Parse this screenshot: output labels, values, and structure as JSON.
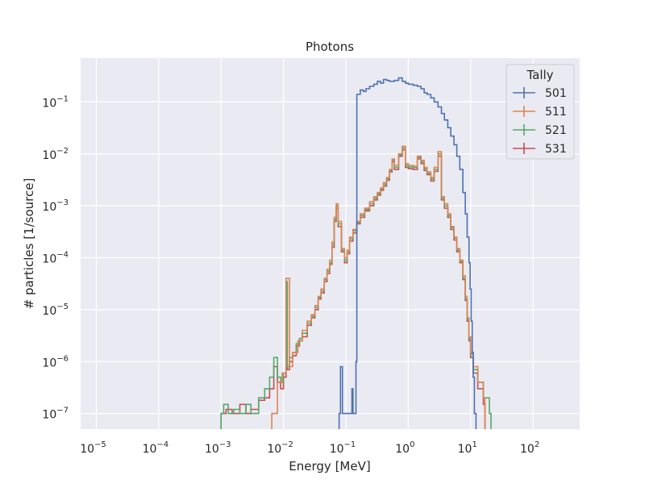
{
  "chart_data": {
    "type": "line",
    "title": "Photons",
    "xlabel": "Energy [MeV]",
    "ylabel": "# particles [1/source]",
    "xscale": "log",
    "yscale": "log",
    "xlim": [
      5.6e-06,
      560.0
    ],
    "ylim": [
      5e-08,
      0.7
    ],
    "grid": true,
    "legend": {
      "title": "Tally",
      "placement": "top-right"
    },
    "x_ticks": [
      {
        "value": 1e-05,
        "base": "10",
        "exp": "−5"
      },
      {
        "value": 0.0001,
        "base": "10",
        "exp": "−4"
      },
      {
        "value": 0.001,
        "base": "10",
        "exp": "−3"
      },
      {
        "value": 0.01,
        "base": "10",
        "exp": "−2"
      },
      {
        "value": 0.1,
        "base": "10",
        "exp": "−1"
      },
      {
        "value": 1,
        "base": "10",
        "exp": "0"
      },
      {
        "value": 10,
        "base": "10",
        "exp": "1"
      },
      {
        "value": 100,
        "base": "10",
        "exp": "2"
      }
    ],
    "y_ticks": [
      {
        "value": 1e-07,
        "base": "10",
        "exp": "−7"
      },
      {
        "value": 1e-06,
        "base": "10",
        "exp": "−6"
      },
      {
        "value": 1e-05,
        "base": "10",
        "exp": "−5"
      },
      {
        "value": 0.0001,
        "base": "10",
        "exp": "−4"
      },
      {
        "value": 0.001,
        "base": "10",
        "exp": "−3"
      },
      {
        "value": 0.01,
        "base": "10",
        "exp": "−2"
      },
      {
        "value": 0.1,
        "base": "10",
        "exp": "−1"
      }
    ],
    "series": [
      {
        "name": "501",
        "color": "#4c72b0",
        "points": [
          [
            0.078,
            1e-07
          ],
          [
            0.082,
            8e-07
          ],
          [
            0.088,
            1e-07
          ],
          [
            0.12,
            1e-07
          ],
          [
            0.125,
            3e-07
          ],
          [
            0.13,
            1e-07
          ],
          [
            0.145,
            1e-06
          ],
          [
            0.15,
            0.14
          ],
          [
            0.17,
            0.17
          ],
          [
            0.19,
            0.16
          ],
          [
            0.21,
            0.18
          ],
          [
            0.24,
            0.2
          ],
          [
            0.28,
            0.22
          ],
          [
            0.32,
            0.25
          ],
          [
            0.36,
            0.23
          ],
          [
            0.4,
            0.27
          ],
          [
            0.45,
            0.26
          ],
          [
            0.5,
            0.25
          ],
          [
            0.6,
            0.26
          ],
          [
            0.7,
            0.29
          ],
          [
            0.8,
            0.25
          ],
          [
            0.9,
            0.23
          ],
          [
            1.0,
            0.22
          ],
          [
            1.2,
            0.21
          ],
          [
            1.4,
            0.2
          ],
          [
            1.6,
            0.18
          ],
          [
            1.8,
            0.15
          ],
          [
            2.0,
            0.14
          ],
          [
            2.3,
            0.12
          ],
          [
            2.6,
            0.1
          ],
          [
            3.0,
            0.08
          ],
          [
            3.4,
            0.06
          ],
          [
            3.8,
            0.045
          ],
          [
            4.3,
            0.032
          ],
          [
            4.8,
            0.022
          ],
          [
            5.4,
            0.015
          ],
          [
            6.0,
            0.009
          ],
          [
            6.7,
            0.005
          ],
          [
            7.5,
            0.0018
          ],
          [
            8.2,
            0.0007
          ],
          [
            8.8,
            0.00025
          ],
          [
            9.4,
            8e-05
          ],
          [
            9.8,
            2.5e-05
          ],
          [
            10.2,
            6e-06
          ],
          [
            10.6,
            1.5e-06
          ],
          [
            11.0,
            5e-07
          ],
          [
            11.5,
            1e-07
          ]
        ]
      },
      {
        "name": "511",
        "color": "#dd8452",
        "points": [
          [
            0.0065,
            1e-07
          ],
          [
            0.008,
            4e-07
          ],
          [
            0.0095,
            6e-07
          ],
          [
            0.011,
            4e-05
          ],
          [
            0.0125,
            8e-07
          ],
          [
            0.014,
            1.5e-06
          ],
          [
            0.017,
            2.5e-06
          ],
          [
            0.02,
            4e-06
          ],
          [
            0.024,
            6e-06
          ],
          [
            0.028,
            8e-06
          ],
          [
            0.032,
            1.2e-05
          ],
          [
            0.036,
            1.8e-05
          ],
          [
            0.04,
            2.5e-05
          ],
          [
            0.045,
            4e-05
          ],
          [
            0.05,
            6e-05
          ],
          [
            0.055,
            9e-05
          ],
          [
            0.06,
            0.0002
          ],
          [
            0.065,
            0.0006
          ],
          [
            0.07,
            0.0011
          ],
          [
            0.075,
            0.0005
          ],
          [
            0.085,
            0.00015
          ],
          [
            0.095,
            0.0001
          ],
          [
            0.105,
            0.00014
          ],
          [
            0.115,
            0.00025
          ],
          [
            0.13,
            0.00035
          ],
          [
            0.15,
            0.0005
          ],
          [
            0.17,
            0.0007
          ],
          [
            0.2,
            0.0009
          ],
          [
            0.24,
            0.0012
          ],
          [
            0.28,
            0.0015
          ],
          [
            0.32,
            0.0018
          ],
          [
            0.36,
            0.0022
          ],
          [
            0.4,
            0.0028
          ],
          [
            0.45,
            0.0035
          ],
          [
            0.5,
            0.005
          ],
          [
            0.55,
            0.008
          ],
          [
            0.6,
            0.006
          ],
          [
            0.7,
            0.01
          ],
          [
            0.8,
            0.014
          ],
          [
            0.9,
            0.0065
          ],
          [
            1.0,
            0.006
          ],
          [
            1.2,
            0.0058
          ],
          [
            1.4,
            0.009
          ],
          [
            1.6,
            0.0075
          ],
          [
            1.8,
            0.0055
          ],
          [
            2.0,
            0.0045
          ],
          [
            2.3,
            0.0035
          ],
          [
            2.6,
            0.0055
          ],
          [
            3.0,
            0.011
          ],
          [
            3.4,
            0.0015
          ],
          [
            3.8,
            0.0011
          ],
          [
            4.3,
            0.0007
          ],
          [
            4.8,
            0.0004
          ],
          [
            5.4,
            0.00025
          ],
          [
            6.0,
            0.00015
          ],
          [
            6.7,
            9e-05
          ],
          [
            7.5,
            4.5e-05
          ],
          [
            8.2,
            1.8e-05
          ],
          [
            8.8,
            7e-06
          ],
          [
            9.4,
            3e-06
          ],
          [
            10.0,
            1.5e-06
          ],
          [
            11.0,
            8e-07
          ],
          [
            13.0,
            4e-07
          ],
          [
            16.0,
            2e-07
          ]
        ]
      },
      {
        "name": "521",
        "color": "#55a868",
        "points": [
          [
            0.001,
            1e-07
          ],
          [
            0.0011,
            1.5e-07
          ],
          [
            0.0013,
            1e-07
          ],
          [
            0.0016,
            1.2e-07
          ],
          [
            0.002,
            1e-07
          ],
          [
            0.0025,
            1.5e-07
          ],
          [
            0.003,
            1e-07
          ],
          [
            0.004,
            2e-07
          ],
          [
            0.005,
            3e-07
          ],
          [
            0.006,
            5e-07
          ],
          [
            0.007,
            1.2e-06
          ],
          [
            0.008,
            5e-07
          ],
          [
            0.009,
            4e-07
          ],
          [
            0.01,
            6e-07
          ],
          [
            0.011,
            3.5e-05
          ],
          [
            0.0115,
            8e-07
          ],
          [
            0.0125,
            1.2e-06
          ],
          [
            0.014,
            1.5e-06
          ],
          [
            0.016,
            2.2e-06
          ],
          [
            0.018,
            2.8e-06
          ],
          [
            0.02,
            3.5e-06
          ],
          [
            0.024,
            5.5e-06
          ],
          [
            0.028,
            7.5e-06
          ],
          [
            0.032,
            1.1e-05
          ],
          [
            0.036,
            1.7e-05
          ],
          [
            0.04,
            2.3e-05
          ],
          [
            0.045,
            3.8e-05
          ],
          [
            0.05,
            5.5e-05
          ],
          [
            0.055,
            8e-05
          ],
          [
            0.06,
            0.00018
          ],
          [
            0.065,
            0.00055
          ],
          [
            0.07,
            0.001
          ],
          [
            0.075,
            0.00045
          ],
          [
            0.085,
            0.00014
          ],
          [
            0.095,
            9e-05
          ],
          [
            0.105,
            0.00013
          ],
          [
            0.115,
            0.00023
          ],
          [
            0.13,
            0.00033
          ],
          [
            0.15,
            0.00048
          ],
          [
            0.17,
            0.00065
          ],
          [
            0.2,
            0.00085
          ],
          [
            0.24,
            0.0011
          ],
          [
            0.28,
            0.0014
          ],
          [
            0.32,
            0.0017
          ],
          [
            0.36,
            0.0021
          ],
          [
            0.4,
            0.0026
          ],
          [
            0.45,
            0.0033
          ],
          [
            0.5,
            0.0048
          ],
          [
            0.55,
            0.0075
          ],
          [
            0.6,
            0.0055
          ],
          [
            0.7,
            0.0095
          ],
          [
            0.8,
            0.013
          ],
          [
            0.9,
            0.006
          ],
          [
            1.0,
            0.0056
          ],
          [
            1.2,
            0.0055
          ],
          [
            1.4,
            0.0085
          ],
          [
            1.6,
            0.007
          ],
          [
            1.8,
            0.0052
          ],
          [
            2.0,
            0.0042
          ],
          [
            2.3,
            0.0033
          ],
          [
            2.6,
            0.005
          ],
          [
            3.0,
            0.01
          ],
          [
            3.4,
            0.0014
          ],
          [
            3.8,
            0.001
          ],
          [
            4.3,
            0.00065
          ],
          [
            4.8,
            0.00038
          ],
          [
            5.4,
            0.00024
          ],
          [
            6.0,
            0.00014
          ],
          [
            6.7,
            8.5e-05
          ],
          [
            7.5,
            4e-05
          ],
          [
            8.2,
            1.6e-05
          ],
          [
            8.8,
            6.5e-06
          ],
          [
            9.4,
            2.8e-06
          ],
          [
            10.0,
            1.4e-06
          ],
          [
            11.0,
            7e-07
          ],
          [
            13.0,
            4e-07
          ],
          [
            16.0,
            2e-07
          ],
          [
            20.0,
            1e-07
          ]
        ]
      },
      {
        "name": "531",
        "color": "#c44e52",
        "points": [
          [
            0.001,
            1e-07
          ],
          [
            0.0012,
            1.2e-07
          ],
          [
            0.0015,
            1e-07
          ],
          [
            0.002,
            1.5e-07
          ],
          [
            0.0025,
            1e-07
          ],
          [
            0.003,
            1.2e-07
          ],
          [
            0.004,
            1.8e-07
          ],
          [
            0.005,
            2e-07
          ],
          [
            0.006,
            3e-07
          ],
          [
            0.007,
            8e-07
          ],
          [
            0.008,
            4e-07
          ],
          [
            0.009,
            3e-07
          ],
          [
            0.01,
            5e-07
          ],
          [
            0.011,
            3.2e-05
          ],
          [
            0.0115,
            7e-07
          ],
          [
            0.0125,
            1e-06
          ],
          [
            0.014,
            1.3e-06
          ],
          [
            0.016,
            2e-06
          ],
          [
            0.018,
            2.5e-06
          ],
          [
            0.02,
            3e-06
          ],
          [
            0.024,
            5e-06
          ],
          [
            0.028,
            7e-06
          ],
          [
            0.032,
            1e-05
          ],
          [
            0.036,
            1.6e-05
          ],
          [
            0.04,
            2.1e-05
          ],
          [
            0.045,
            3.5e-05
          ],
          [
            0.05,
            5e-05
          ],
          [
            0.055,
            7.5e-05
          ],
          [
            0.06,
            0.00016
          ],
          [
            0.065,
            0.0005
          ],
          [
            0.07,
            0.0009
          ],
          [
            0.075,
            0.0004
          ],
          [
            0.085,
            0.00013
          ],
          [
            0.095,
            8e-05
          ],
          [
            0.105,
            0.00012
          ],
          [
            0.115,
            0.00021
          ],
          [
            0.13,
            0.0003
          ],
          [
            0.15,
            0.00045
          ],
          [
            0.17,
            0.0006
          ],
          [
            0.2,
            0.0008
          ],
          [
            0.24,
            0.001
          ],
          [
            0.28,
            0.0013
          ],
          [
            0.32,
            0.0016
          ],
          [
            0.36,
            0.002
          ],
          [
            0.4,
            0.0024
          ],
          [
            0.45,
            0.0031
          ],
          [
            0.5,
            0.0045
          ],
          [
            0.55,
            0.007
          ],
          [
            0.6,
            0.005
          ],
          [
            0.7,
            0.009
          ],
          [
            0.8,
            0.012
          ],
          [
            0.9,
            0.0055
          ],
          [
            1.0,
            0.0052
          ],
          [
            1.2,
            0.005
          ],
          [
            1.4,
            0.008
          ],
          [
            1.6,
            0.0065
          ],
          [
            1.8,
            0.0048
          ],
          [
            2.0,
            0.004
          ],
          [
            2.3,
            0.003
          ],
          [
            2.6,
            0.0046
          ],
          [
            3.0,
            0.009
          ],
          [
            3.4,
            0.0013
          ],
          [
            3.8,
            0.0009
          ],
          [
            4.3,
            0.0006
          ],
          [
            4.8,
            0.00035
          ],
          [
            5.4,
            0.00022
          ],
          [
            6.0,
            0.00013
          ],
          [
            6.7,
            8e-05
          ],
          [
            7.5,
            3.8e-05
          ],
          [
            8.2,
            1.5e-05
          ],
          [
            8.8,
            6e-06
          ],
          [
            9.4,
            2.5e-06
          ],
          [
            10.0,
            1.2e-06
          ],
          [
            11.0,
            6e-07
          ],
          [
            13.0,
            3e-07
          ],
          [
            16.0,
            1.5e-07
          ]
        ]
      }
    ]
  }
}
